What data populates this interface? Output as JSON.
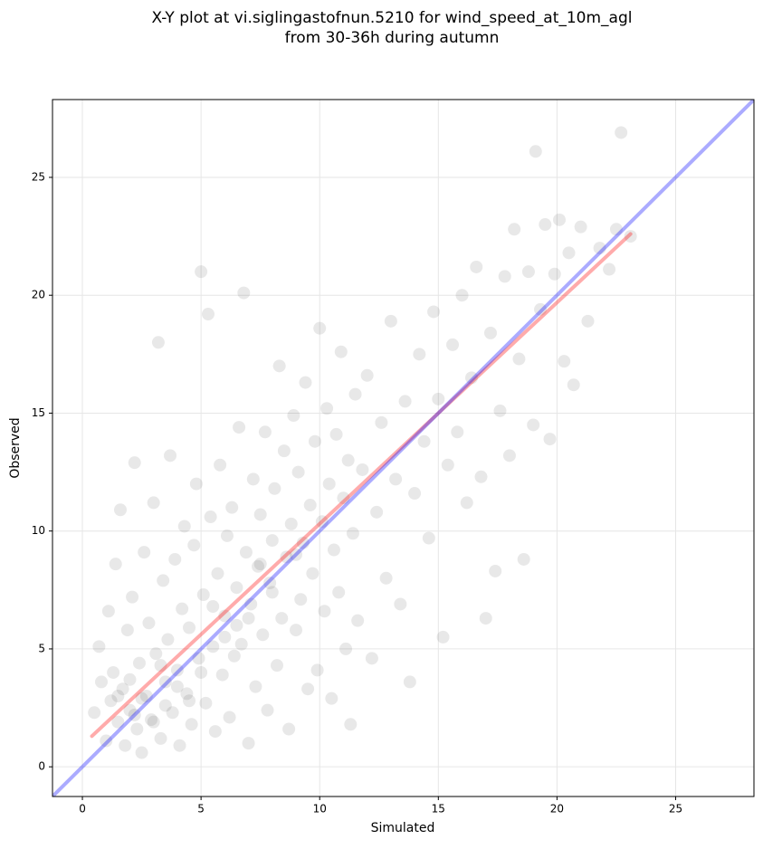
{
  "chart_data": {
    "type": "scatter",
    "title_lines": [
      "X-Y plot at vi.siglingastofnun.5210 for wind_speed_at_10m_agl",
      "from 30-36h during autumn"
    ],
    "x_label": "Simulated",
    "y_label": "Observed",
    "color": "#000000",
    "x": [
      0.5,
      0.7,
      0.8,
      1.0,
      1.1,
      1.2,
      1.3,
      1.4,
      1.5,
      1.6,
      1.7,
      1.8,
      1.9,
      2.0,
      2.1,
      2.2,
      2.3,
      2.4,
      2.5,
      2.6,
      2.7,
      2.8,
      2.9,
      3.0,
      3.1,
      3.2,
      3.3,
      3.4,
      3.5,
      3.6,
      3.7,
      3.8,
      3.9,
      4.0,
      4.1,
      4.2,
      4.3,
      4.4,
      4.5,
      4.6,
      4.7,
      4.8,
      4.9,
      5.0,
      5.1,
      5.2,
      5.3,
      5.4,
      5.5,
      5.6,
      5.7,
      5.8,
      5.9,
      6.0,
      6.1,
      6.2,
      6.3,
      6.4,
      6.5,
      6.6,
      6.7,
      6.8,
      6.9,
      7.0,
      7.1,
      7.2,
      7.3,
      7.4,
      7.5,
      7.6,
      7.7,
      7.8,
      7.9,
      8.0,
      8.1,
      8.2,
      8.3,
      8.4,
      8.5,
      8.6,
      8.7,
      8.8,
      8.9,
      9.0,
      9.1,
      9.2,
      9.3,
      9.4,
      9.5,
      9.6,
      9.7,
      9.8,
      9.9,
      10.0,
      10.1,
      10.2,
      10.3,
      10.4,
      10.5,
      10.6,
      10.7,
      10.8,
      10.9,
      11.0,
      11.1,
      11.2,
      11.3,
      11.4,
      11.5,
      11.6,
      11.8,
      12.0,
      12.2,
      12.4,
      12.6,
      12.8,
      13.0,
      13.2,
      13.4,
      13.6,
      13.8,
      14.0,
      14.2,
      14.4,
      14.6,
      14.8,
      15.0,
      15.2,
      15.4,
      15.6,
      15.8,
      16.0,
      16.2,
      16.4,
      16.6,
      16.8,
      17.0,
      17.2,
      17.4,
      17.6,
      17.8,
      18.0,
      18.2,
      18.4,
      18.6,
      18.8,
      19.0,
      19.1,
      19.3,
      19.5,
      19.7,
      19.9,
      20.1,
      20.3,
      20.5,
      20.7,
      21.0,
      21.3,
      21.8,
      22.2,
      22.5,
      22.7,
      23.1,
      2.0,
      2.5,
      3.0,
      3.5,
      4.0,
      2.2,
      1.5,
      3.3,
      4.5,
      5.0,
      6.0,
      7.0,
      8.0,
      9.0,
      7.5,
      6.5,
      5.5
    ],
    "y": [
      2.3,
      5.1,
      3.6,
      1.1,
      6.6,
      2.8,
      4.0,
      8.6,
      1.9,
      10.9,
      3.3,
      0.9,
      5.8,
      2.4,
      7.2,
      12.9,
      1.6,
      4.4,
      0.6,
      9.1,
      3.0,
      6.1,
      2.0,
      11.2,
      4.8,
      18.0,
      1.2,
      7.9,
      3.6,
      5.4,
      13.2,
      2.3,
      8.8,
      4.1,
      0.9,
      6.7,
      10.2,
      3.1,
      5.9,
      1.8,
      9.4,
      12.0,
      4.6,
      21.0,
      7.3,
      2.7,
      19.2,
      10.6,
      5.1,
      1.5,
      8.2,
      12.8,
      3.9,
      6.4,
      9.8,
      2.1,
      11.0,
      4.7,
      7.6,
      14.4,
      5.2,
      20.1,
      9.1,
      1.0,
      6.9,
      12.2,
      3.4,
      8.5,
      10.7,
      5.6,
      14.2,
      2.4,
      7.8,
      9.6,
      11.8,
      4.3,
      17.0,
      6.3,
      13.4,
      8.9,
      1.6,
      10.3,
      14.9,
      5.8,
      12.5,
      7.1,
      9.5,
      16.3,
      3.3,
      11.1,
      8.2,
      13.8,
      4.1,
      18.6,
      10.4,
      6.6,
      15.2,
      12.0,
      2.9,
      9.2,
      14.1,
      7.4,
      17.6,
      11.4,
      5.0,
      13.0,
      1.8,
      9.9,
      15.8,
      6.2,
      12.6,
      16.6,
      4.6,
      10.8,
      14.6,
      8.0,
      18.9,
      12.2,
      6.9,
      15.5,
      3.6,
      11.6,
      17.5,
      13.8,
      9.7,
      19.3,
      15.6,
      5.5,
      12.8,
      17.9,
      14.2,
      20.0,
      11.2,
      16.5,
      21.2,
      12.3,
      6.3,
      18.4,
      8.3,
      15.1,
      20.8,
      13.2,
      22.8,
      17.3,
      8.8,
      21.0,
      14.5,
      26.1,
      19.4,
      23.0,
      13.9,
      20.9,
      23.2,
      17.2,
      21.8,
      16.2,
      22.9,
      18.9,
      22.0,
      21.1,
      22.8,
      26.9,
      22.5,
      3.7,
      2.9,
      1.9,
      2.6,
      3.4,
      2.2,
      3.0,
      4.3,
      2.8,
      4.0,
      5.5,
      6.3,
      7.4,
      9.0,
      8.6,
      6.0,
      6.8
    ],
    "xlim": [
      -1.26,
      28.3
    ],
    "ylim": [
      -1.26,
      28.3
    ],
    "xticks": [
      0,
      5,
      10,
      15,
      20,
      25
    ],
    "yticks": [
      0,
      5,
      10,
      15,
      20,
      25
    ],
    "grid": true,
    "identity_line": {
      "color": "#0000ff"
    },
    "fit_line": {
      "color": "#ff0000",
      "x": [
        0.4,
        23.1
      ],
      "y": [
        1.3,
        22.6
      ]
    }
  }
}
